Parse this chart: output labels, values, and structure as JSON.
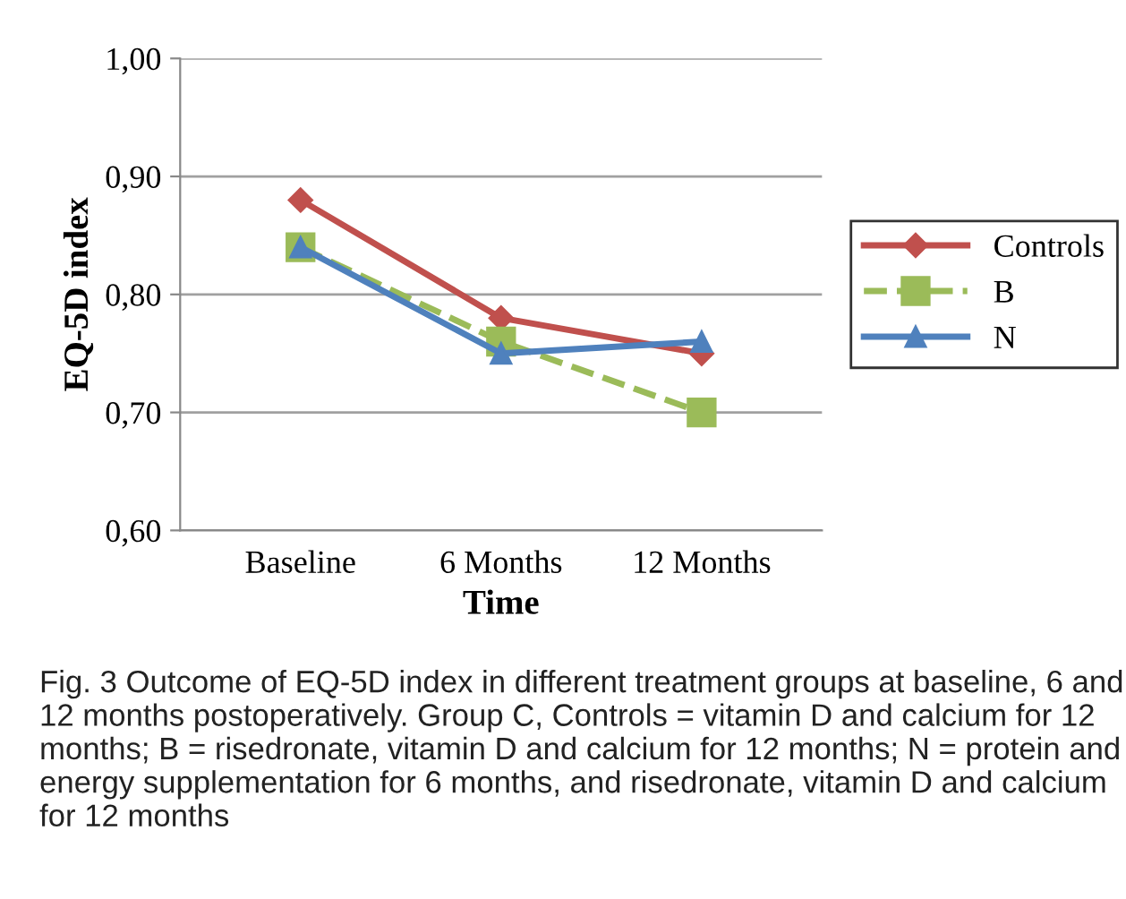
{
  "chart_data": {
    "type": "line",
    "xlabel": "Time",
    "ylabel": "EQ-5D index",
    "categories": [
      "Baseline",
      "6 Months",
      "12 Months"
    ],
    "series": [
      {
        "name": "Controls",
        "color": "#c0504d",
        "values": [
          0.88,
          0.78,
          0.75
        ],
        "marker": "diamond",
        "line_style": "solid"
      },
      {
        "name": "B",
        "color": "#9bbb59",
        "values": [
          0.84,
          0.76,
          0.7
        ],
        "marker": "square",
        "line_style": "dashed"
      },
      {
        "name": "N",
        "color": "#4f81bd",
        "values": [
          0.84,
          0.75,
          0.76
        ],
        "marker": "triangle",
        "line_style": "solid"
      }
    ],
    "ylim": [
      0.6,
      1.0
    ],
    "yticks": [
      {
        "value": 0.6,
        "label": "0,60"
      },
      {
        "value": 0.7,
        "label": "0,70"
      },
      {
        "value": 0.8,
        "label": "0,80"
      },
      {
        "value": 0.9,
        "label": "0,90"
      },
      {
        "value": 1.0,
        "label": "1,00"
      }
    ],
    "grid": "y",
    "legend": "right",
    "annotations": [
      "Fig. 3 Outcome of EQ-5D index in different treatment groups at baseline, 6 and 12 months postoperatively. Group C, Controls = vitamin D and calcium for 12 months; B = risedronate, vitamin D and calcium for 12 months; N = protein and energy supplementation for 6 months, and risedronate, vitamin D and calcium for 12 months"
    ]
  }
}
